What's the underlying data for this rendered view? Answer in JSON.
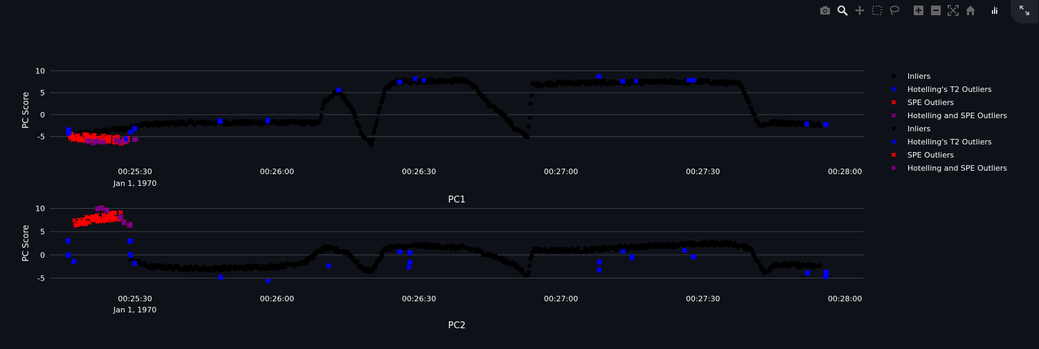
{
  "modebar": {
    "icons": [
      "camera-icon",
      "zoom-icon",
      "pan-icon",
      "box-select-icon",
      "lasso-icon",
      "zoom-in-icon",
      "zoom-out-icon",
      "autoscale-icon",
      "reset-axes-icon",
      "plotly-logo-icon"
    ],
    "fullscreen_icon": "expand-icon"
  },
  "colors": {
    "background": "#0e1117",
    "grid": "#3a3f4b",
    "text": "#fafafa",
    "inliers": "#000000",
    "t2": "#0000ff",
    "spe": "#ff0000",
    "both": "#800080"
  },
  "chart_data": [
    {
      "type": "scatter",
      "title": "PC1",
      "ylabel": "PC Score",
      "ylim": [
        -9,
        11
      ],
      "yticks": [
        10,
        5,
        0,
        -5
      ],
      "xlim": [
        "00:25:12",
        "00:28:04"
      ],
      "xticks": [
        "00:25:30",
        "00:26:00",
        "00:26:30",
        "00:27:00",
        "00:27:30",
        "00:28:00"
      ],
      "xtick_sub": "Jan 1, 1970",
      "inliers_profile": [
        [
          "00:25:18",
          -4.5
        ],
        [
          "00:25:29",
          -3.0
        ],
        [
          "00:25:31",
          -2.3
        ],
        [
          "00:25:40",
          -1.9
        ],
        [
          "00:26:00",
          -1.8
        ],
        [
          "00:26:09",
          -1.9
        ],
        [
          "00:26:10",
          3.0
        ],
        [
          "00:26:13",
          5.5
        ],
        [
          "00:26:16",
          1.0
        ],
        [
          "00:26:18",
          -5.0
        ],
        [
          "00:26:20",
          -6.5
        ],
        [
          "00:26:21",
          -1.5
        ],
        [
          "00:26:23",
          6.0
        ],
        [
          "00:26:25",
          7.5
        ],
        [
          "00:26:40",
          7.8
        ],
        [
          "00:26:42",
          6.0
        ],
        [
          "00:26:45",
          2.0
        ],
        [
          "00:26:48",
          0.0
        ],
        [
          "00:26:50",
          -3.0
        ],
        [
          "00:26:53",
          -5.0
        ],
        [
          "00:26:54",
          6.8
        ],
        [
          "00:27:00",
          7.2
        ],
        [
          "00:27:30",
          7.5
        ],
        [
          "00:27:38",
          7.0
        ],
        [
          "00:27:40",
          2.0
        ],
        [
          "00:27:42",
          -2.5
        ],
        [
          "00:27:45",
          -1.8
        ],
        [
          "00:27:55",
          -2.2
        ]
      ],
      "t2_points": [
        [
          "00:25:16",
          -3.5
        ],
        [
          "00:25:16",
          -4.2
        ],
        [
          "00:25:28",
          -5.5
        ],
        [
          "00:25:29",
          -4.0
        ],
        [
          "00:25:30",
          -3.2
        ],
        [
          "00:25:48",
          -1.5
        ],
        [
          "00:25:58",
          -1.4
        ],
        [
          "00:26:13",
          5.6
        ],
        [
          "00:26:26",
          7.5
        ],
        [
          "00:26:29",
          8.3
        ],
        [
          "00:26:31",
          8.0
        ],
        [
          "00:27:08",
          8.6
        ],
        [
          "00:27:13",
          7.6
        ],
        [
          "00:27:16",
          7.7
        ],
        [
          "00:27:27",
          7.6
        ],
        [
          "00:27:28",
          7.8
        ],
        [
          "00:27:52",
          -2.1
        ],
        [
          "00:27:56",
          -2.3
        ]
      ],
      "spe_segment": [
        [
          "00:25:16",
          -5.0
        ],
        [
          "00:25:29",
          -6.0
        ]
      ],
      "both_points": [
        [
          "00:25:20",
          -6.0
        ],
        [
          "00:25:21",
          -6.3
        ],
        [
          "00:25:22",
          -6.0
        ],
        [
          "00:25:23",
          -6.2
        ],
        [
          "00:25:26",
          -5.8
        ],
        [
          "00:25:27",
          -6.2
        ],
        [
          "00:25:28",
          -5.9
        ],
        [
          "00:25:30",
          -5.7
        ]
      ]
    },
    {
      "type": "scatter",
      "title": "PC2",
      "ylabel": "PC Score",
      "ylim": [
        -7,
        12
      ],
      "yticks": [
        10,
        5,
        0,
        -5
      ],
      "xlim": [
        "00:25:12",
        "00:28:04"
      ],
      "xticks": [
        "00:25:30",
        "00:26:00",
        "00:26:30",
        "00:27:00",
        "00:27:30",
        "00:28:00"
      ],
      "xtick_sub": "Jan 1, 1970",
      "inliers_profile": [
        [
          "00:25:29",
          -1.0
        ],
        [
          "00:25:33",
          -2.5
        ],
        [
          "00:25:45",
          -3.0
        ],
        [
          "00:26:00",
          -2.5
        ],
        [
          "00:26:06",
          -1.5
        ],
        [
          "00:26:10",
          1.5
        ],
        [
          "00:26:15",
          0.5
        ],
        [
          "00:26:18",
          -3.0
        ],
        [
          "00:26:20",
          -3.5
        ],
        [
          "00:26:23",
          1.5
        ],
        [
          "00:26:30",
          2.0
        ],
        [
          "00:26:40",
          1.5
        ],
        [
          "00:26:45",
          0.0
        ],
        [
          "00:26:50",
          -2.0
        ],
        [
          "00:26:53",
          -4.5
        ],
        [
          "00:26:54",
          1.0
        ],
        [
          "00:27:05",
          1.0
        ],
        [
          "00:27:20",
          2.0
        ],
        [
          "00:27:35",
          2.5
        ],
        [
          "00:27:40",
          1.5
        ],
        [
          "00:27:43",
          -4.0
        ],
        [
          "00:27:45",
          -2.0
        ],
        [
          "00:27:55",
          -2.5
        ]
      ],
      "t2_points": [
        [
          "00:25:16",
          3.0
        ],
        [
          "00:25:16",
          0.0
        ],
        [
          "00:25:17",
          -1.5
        ],
        [
          "00:25:29",
          3.0
        ],
        [
          "00:25:29",
          0.0
        ],
        [
          "00:25:30",
          -2.0
        ],
        [
          "00:25:48",
          -4.8
        ],
        [
          "00:25:58",
          -5.6
        ],
        [
          "00:26:11",
          -2.2
        ],
        [
          "00:26:26",
          0.8
        ],
        [
          "00:26:28",
          -1.5
        ],
        [
          "00:26:28",
          -2.5
        ],
        [
          "00:26:28",
          0.6
        ],
        [
          "00:27:08",
          -1.5
        ],
        [
          "00:27:08",
          -3.2
        ],
        [
          "00:27:13",
          0.7
        ],
        [
          "00:27:15",
          -0.5
        ],
        [
          "00:27:26",
          0.8
        ],
        [
          "00:27:28",
          -0.3
        ],
        [
          "00:27:52",
          -3.8
        ],
        [
          "00:27:56",
          -4.6
        ],
        [
          "00:27:56",
          -3.6
        ]
      ],
      "spe_segment": [
        [
          "00:25:17",
          7.0
        ],
        [
          "00:25:27",
          8.5
        ]
      ],
      "both_points": [
        [
          "00:25:22",
          9.8
        ],
        [
          "00:25:23",
          10.0
        ],
        [
          "00:25:24",
          9.7
        ],
        [
          "00:25:27",
          8.0
        ],
        [
          "00:25:28",
          7.0
        ],
        [
          "00:25:29",
          6.5
        ]
      ]
    }
  ],
  "legend": {
    "items": [
      {
        "label": "Inliers",
        "symbol": "dot",
        "color": "#000000"
      },
      {
        "label": "Hotelling's T2 Outliers",
        "symbol": "x",
        "color": "#0000ff"
      },
      {
        "label": "SPE Outliers",
        "symbol": "x",
        "color": "#ff0000"
      },
      {
        "label": "Hotelling and SPE Outliers",
        "symbol": "x",
        "color": "#800080"
      },
      {
        "label": "Inliers",
        "symbol": "dot",
        "color": "#000000"
      },
      {
        "label": "Hotelling's T2 Outliers",
        "symbol": "x",
        "color": "#0000ff"
      },
      {
        "label": "SPE Outliers",
        "symbol": "x",
        "color": "#ff0000"
      },
      {
        "label": "Hotelling and SPE Outliers",
        "symbol": "x",
        "color": "#800080"
      }
    ]
  }
}
